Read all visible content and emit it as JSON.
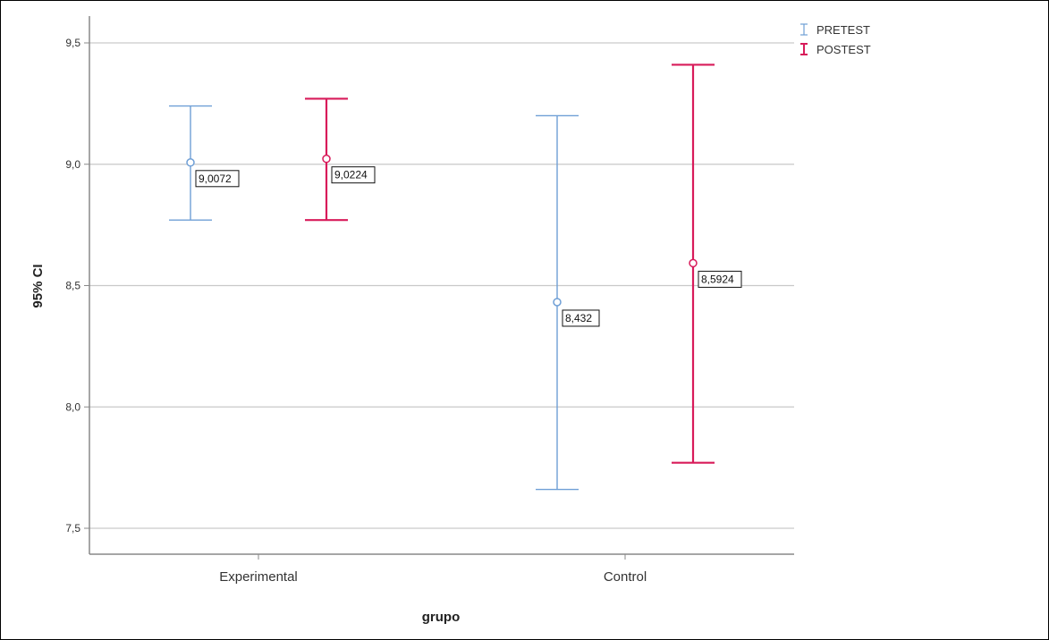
{
  "chart_data": {
    "type": "error-bar",
    "xlabel": "grupo",
    "ylabel": "95% CI",
    "ylim": [
      7.4,
      9.6
    ],
    "yticks": [
      7.5,
      8.0,
      8.5,
      9.0,
      9.5
    ],
    "ytick_labels": [
      "7,5",
      "8,0",
      "8,5",
      "9,0",
      "9,5"
    ],
    "grid": "horizontal",
    "legend_position": "top-right",
    "categories": [
      "Experimental",
      "Control"
    ],
    "series": [
      {
        "name": "PRETEST",
        "color": "#6f9fd6",
        "points": [
          {
            "category": "Experimental",
            "mean": 9.0072,
            "lower": 8.77,
            "upper": 9.24,
            "label": "9,0072"
          },
          {
            "category": "Control",
            "mean": 8.432,
            "lower": 7.66,
            "upper": 9.2,
            "label": "8,432"
          }
        ]
      },
      {
        "name": "POSTEST",
        "color": "#d81b5a",
        "points": [
          {
            "category": "Experimental",
            "mean": 9.0224,
            "lower": 8.77,
            "upper": 9.27,
            "label": "9,0224"
          },
          {
            "category": "Control",
            "mean": 8.5924,
            "lower": 7.77,
            "upper": 9.41,
            "label": "8,5924"
          }
        ]
      }
    ]
  }
}
